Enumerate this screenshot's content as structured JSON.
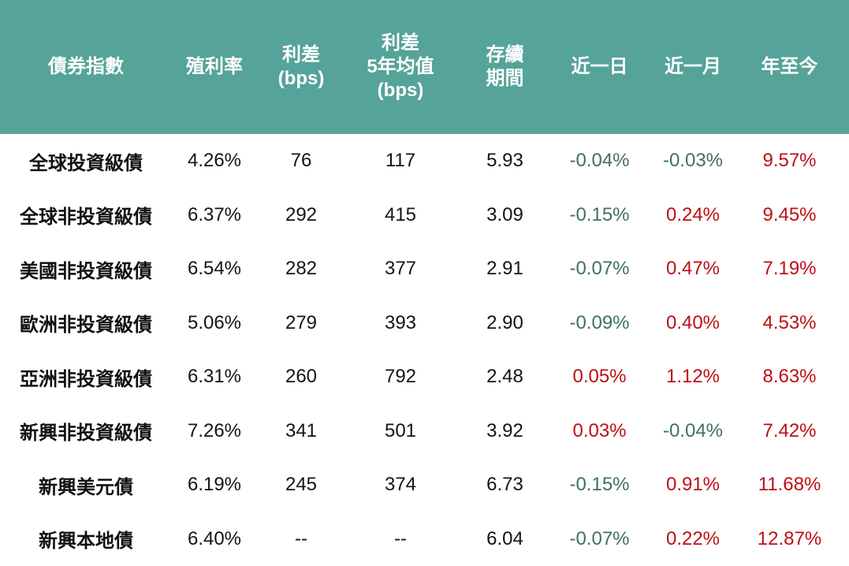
{
  "colors": {
    "header_bg": "#56A39A",
    "header_text": "#FFFFFF",
    "positive_red": "#BD0E14",
    "negative_teal": "#3F6F68",
    "neutral_black": "#141414",
    "page_bg": "#FFFFFF"
  },
  "table": {
    "columns": [
      {
        "key": "name",
        "label": "債券指數"
      },
      {
        "key": "yield",
        "label": "殖利率"
      },
      {
        "key": "spread",
        "label": "利差\n(bps)"
      },
      {
        "key": "spread_5y",
        "label": "利差\n5年均值\n(bps)"
      },
      {
        "key": "duration",
        "label": "存續\n期間"
      },
      {
        "key": "day1",
        "label": "近一日"
      },
      {
        "key": "month1",
        "label": "近一月"
      },
      {
        "key": "ytd",
        "label": "年至今"
      }
    ],
    "colored_columns": [
      "day1",
      "month1",
      "ytd"
    ],
    "rows": [
      {
        "name": "全球投資級債",
        "yield": "4.26%",
        "spread": "76",
        "spread_5y": "117",
        "duration": "5.93",
        "day1": "-0.04%",
        "month1": "-0.03%",
        "ytd": "9.57%"
      },
      {
        "name": "全球非投資級債",
        "yield": "6.37%",
        "spread": "292",
        "spread_5y": "415",
        "duration": "3.09",
        "day1": "-0.15%",
        "month1": "0.24%",
        "ytd": "9.45%"
      },
      {
        "name": "美國非投資級債",
        "yield": "6.54%",
        "spread": "282",
        "spread_5y": "377",
        "duration": "2.91",
        "day1": "-0.07%",
        "month1": "0.47%",
        "ytd": "7.19%"
      },
      {
        "name": "歐洲非投資級債",
        "yield": "5.06%",
        "spread": "279",
        "spread_5y": "393",
        "duration": "2.90",
        "day1": "-0.09%",
        "month1": "0.40%",
        "ytd": "4.53%"
      },
      {
        "name": "亞洲非投資級債",
        "yield": "6.31%",
        "spread": "260",
        "spread_5y": "792",
        "duration": "2.48",
        "day1": "0.05%",
        "month1": "1.12%",
        "ytd": "8.63%"
      },
      {
        "name": "新興非投資級債",
        "yield": "7.26%",
        "spread": "341",
        "spread_5y": "501",
        "duration": "3.92",
        "day1": "0.03%",
        "month1": "-0.04%",
        "ytd": "7.42%"
      },
      {
        "name": "新興美元債",
        "yield": "6.19%",
        "spread": "245",
        "spread_5y": "374",
        "duration": "6.73",
        "day1": "-0.15%",
        "month1": "0.91%",
        "ytd": "11.68%"
      },
      {
        "name": "新興本地債",
        "yield": "6.40%",
        "spread": "--",
        "spread_5y": "--",
        "duration": "6.04",
        "day1": "-0.07%",
        "month1": "0.22%",
        "ytd": "12.87%"
      }
    ]
  }
}
